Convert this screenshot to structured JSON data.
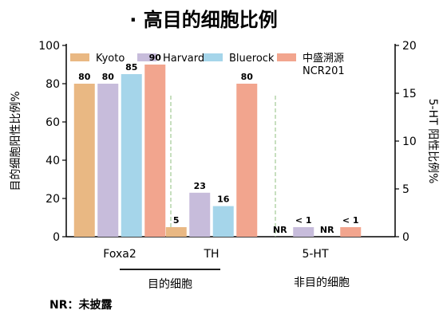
{
  "title": "· 高目的细胞比例",
  "chart_data": {
    "type": "bar",
    "title": "· 高目的细胞比例",
    "categories": [
      "Foxa2",
      "TH",
      "5-HT"
    ],
    "ylabel_left": "目的细胞阳性比例%",
    "ylabel_right": "5-HT 阳性比例%",
    "ylim_left": [
      0,
      100
    ],
    "yticks_left": [
      "0",
      "20",
      "40",
      "60",
      "80",
      "100"
    ],
    "ylim_right": [
      0,
      20
    ],
    "yticks_right": [
      "0",
      "5",
      "10",
      "15",
      "20"
    ],
    "series": [
      {
        "name": "Kyoto",
        "color": "#E9B883",
        "values": [
          80,
          5,
          null
        ],
        "labels": [
          "80",
          "5",
          "NR"
        ]
      },
      {
        "name": "Harvard",
        "color": "#C7BCDB",
        "values": [
          80,
          23,
          1
        ],
        "labels": [
          "80",
          "23",
          "< 1"
        ]
      },
      {
        "name": "Bluerock",
        "color": "#A5D5EA",
        "values": [
          85,
          16,
          null
        ],
        "labels": [
          "85",
          "16",
          "NR"
        ]
      },
      {
        "name": "中盛溯源\nNCR201",
        "color": "#F2A58E",
        "values": [
          90,
          80,
          1
        ],
        "labels": [
          "90",
          "80",
          "< 1"
        ]
      }
    ],
    "axis_for_category": [
      "left",
      "left",
      "right"
    ],
    "legend": "top",
    "brackets": [
      {
        "label": "目的细胞",
        "from_category": 0,
        "to_category": 1
      },
      {
        "label": "非目的细胞",
        "from_category": 2,
        "to_category": 2
      }
    ],
    "annotation": "NR：未披露"
  }
}
